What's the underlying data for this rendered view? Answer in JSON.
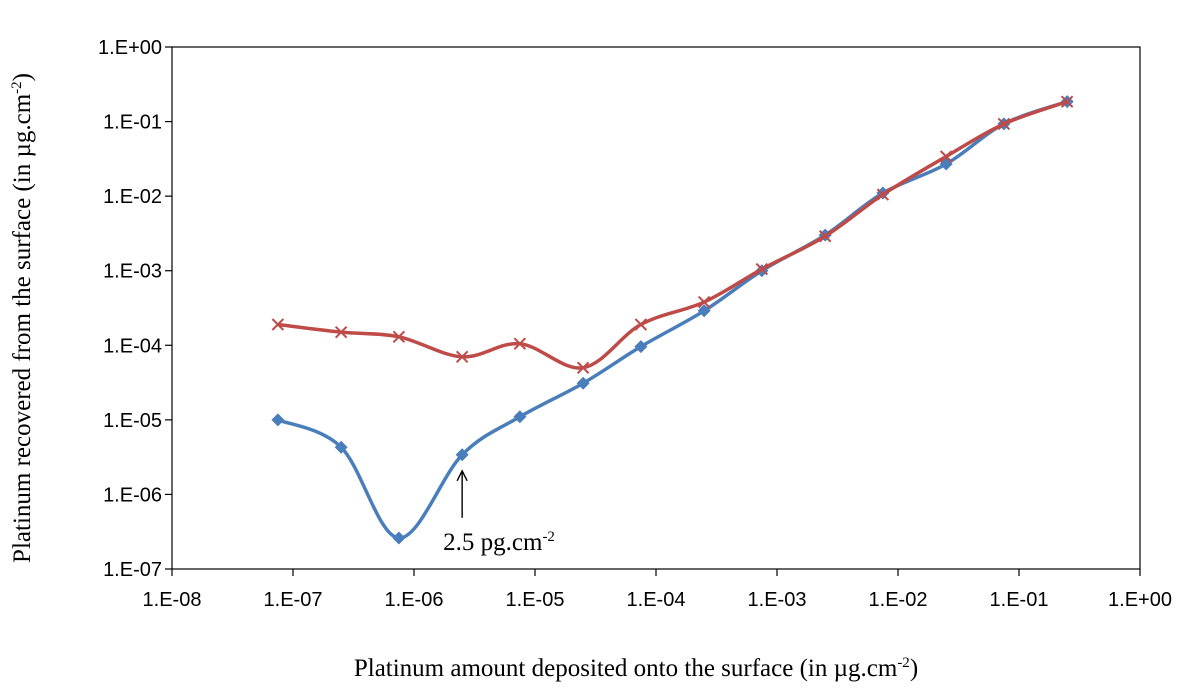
{
  "chart_data": {
    "type": "line",
    "title": "",
    "xscale": "log",
    "yscale": "log",
    "xlim": [
      1e-08,
      1
    ],
    "ylim": [
      1e-07,
      1
    ],
    "grid": false,
    "legend": "none",
    "xlabel": {
      "text": "Platinum amount deposited onto the surface (in µg.cm",
      "sup": "-2",
      "tail": ")"
    },
    "ylabel": {
      "text": "Platinum recovered from the surface (in µg.cm",
      "sup": "-2",
      "tail": ")"
    },
    "x_ticks": [
      "1.E-08",
      "1.E-07",
      "1.E-06",
      "1.E-05",
      "1.E-04",
      "1.E-03",
      "1.E-02",
      "1.E-01",
      "1.E+00"
    ],
    "y_ticks": [
      "1.E-07",
      "1.E-06",
      "1.E-05",
      "1.E-04",
      "1.E-03",
      "1.E-02",
      "1.E-01",
      "1.E+00"
    ],
    "annotation": {
      "text": "2.5 pg.cm",
      "sup": "-2",
      "x": 2.5e-06,
      "y": 3.4e-06
    },
    "series": [
      {
        "color": "#4a7ebb",
        "marker": "diamond",
        "x": [
          7.5e-08,
          2.5e-07,
          7.5e-07,
          2.5e-06,
          7.5e-06,
          2.5e-05,
          7.5e-05,
          0.00025,
          0.00075,
          0.0025,
          0.0075,
          0.025,
          0.075,
          0.25
        ],
        "values": [
          1e-05,
          4.3e-06,
          2.6e-07,
          3.4e-06,
          1.1e-05,
          3.1e-05,
          9.6e-05,
          0.00029,
          0.001,
          0.003,
          0.011,
          0.027,
          0.093,
          0.185
        ]
      },
      {
        "color": "#be4b48",
        "marker": "x",
        "x": [
          7.5e-08,
          2.5e-07,
          7.5e-07,
          2.5e-06,
          7.5e-06,
          2.5e-05,
          7.5e-05,
          0.00025,
          0.00075,
          0.0025,
          0.0075,
          0.025,
          0.075,
          0.25
        ],
        "values": [
          0.00019,
          0.00015,
          0.00013,
          7e-05,
          0.000105,
          5e-05,
          0.00019,
          0.00038,
          0.00105,
          0.0029,
          0.0105,
          0.034,
          0.093,
          0.185
        ]
      }
    ]
  }
}
